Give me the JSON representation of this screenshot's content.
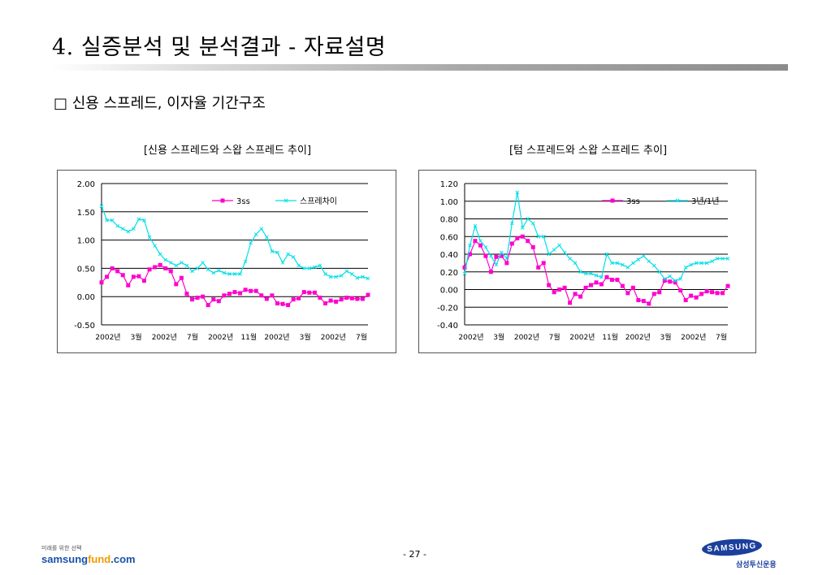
{
  "slide": {
    "title": "4. 실증분석 및 분석결과 - 자료설명",
    "subtitle": "□ 신용 스프레드, 이자율 기간구조"
  },
  "footer": {
    "tagline": "미래를 위한 선택",
    "site_main": "samsung",
    "site_accent": "fund",
    "site_suffix": ".com",
    "page_number": "- 27 -",
    "logo_text": "SAMSUNG",
    "company": "삼성투신운용"
  },
  "colors": {
    "series_a": "#ff00cc",
    "series_b": "#00e0e8"
  },
  "chart_data": [
    {
      "type": "line",
      "title": "[신용 스프레드와 스왑 스프레드 추이]",
      "legend_position": "top",
      "grid": true,
      "ylim": [
        -0.5,
        2.0
      ],
      "y_ticks": [
        "2.00",
        "1.50",
        "1.00",
        "0.50",
        "0.00",
        "-0.50"
      ],
      "y_tick_values": [
        2.0,
        1.5,
        1.0,
        0.5,
        0.0,
        -0.5
      ],
      "x_tick_labels": [
        "2002년",
        "3월",
        "2002년",
        "7월",
        "2002년",
        "11월",
        "2002년",
        "3월",
        "2002년",
        "7월"
      ],
      "series": [
        {
          "name": "3ss",
          "marker": "square",
          "values": [
            0.25,
            0.35,
            0.5,
            0.45,
            0.38,
            0.2,
            0.35,
            0.36,
            0.28,
            0.48,
            0.52,
            0.56,
            0.5,
            0.45,
            0.22,
            0.33,
            0.05,
            -0.05,
            -0.02,
            0.0,
            -0.15,
            -0.05,
            -0.08,
            0.02,
            0.05,
            0.08,
            0.06,
            0.12,
            0.1,
            0.1,
            0.02,
            -0.04,
            0.02,
            -0.12,
            -0.13,
            -0.15,
            -0.05,
            -0.03,
            0.08,
            0.07,
            0.07,
            -0.02,
            -0.12,
            -0.07,
            -0.09,
            -0.05,
            -0.02,
            -0.03,
            -0.04,
            -0.04,
            0.03
          ]
        },
        {
          "name": "스프레차이",
          "marker": "x",
          "values": [
            1.6,
            1.35,
            1.35,
            1.25,
            1.2,
            1.15,
            1.2,
            1.37,
            1.35,
            1.05,
            0.9,
            0.75,
            0.65,
            0.6,
            0.55,
            0.6,
            0.55,
            0.45,
            0.5,
            0.6,
            0.48,
            0.42,
            0.46,
            0.42,
            0.4,
            0.4,
            0.4,
            0.62,
            0.95,
            1.1,
            1.2,
            1.05,
            0.8,
            0.78,
            0.6,
            0.75,
            0.7,
            0.55,
            0.5,
            0.5,
            0.52,
            0.55,
            0.4,
            0.35,
            0.35,
            0.37,
            0.45,
            0.4,
            0.33,
            0.35,
            0.32
          ]
        }
      ]
    },
    {
      "type": "line",
      "title": "[텀 스프레드와 스왑 스프레드 추이]",
      "legend_position": "top",
      "grid": true,
      "ylim": [
        -0.4,
        1.2
      ],
      "y_ticks": [
        "1.20",
        "1.00",
        "0.80",
        "0.60",
        "0.40",
        "0.20",
        "0.00",
        "-0.20",
        "-0.40"
      ],
      "y_tick_values": [
        1.2,
        1.0,
        0.8,
        0.6,
        0.4,
        0.2,
        0.0,
        -0.2,
        -0.4
      ],
      "x_tick_labels": [
        "2002년",
        "3월",
        "2002년",
        "7월",
        "2002년",
        "11월",
        "2002년",
        "3월",
        "2002년",
        "7월"
      ],
      "series": [
        {
          "name": "3ss",
          "marker": "square",
          "values": [
            0.25,
            0.4,
            0.55,
            0.5,
            0.38,
            0.2,
            0.37,
            0.38,
            0.3,
            0.52,
            0.58,
            0.6,
            0.55,
            0.48,
            0.25,
            0.3,
            0.05,
            -0.03,
            0.0,
            0.02,
            -0.15,
            -0.05,
            -0.08,
            0.02,
            0.05,
            0.08,
            0.06,
            0.14,
            0.11,
            0.11,
            0.04,
            -0.04,
            0.02,
            -0.12,
            -0.13,
            -0.16,
            -0.05,
            -0.03,
            0.1,
            0.09,
            0.08,
            -0.01,
            -0.12,
            -0.07,
            -0.09,
            -0.05,
            -0.02,
            -0.03,
            -0.04,
            -0.04,
            0.04
          ]
        },
        {
          "name": "3년/1년",
          "marker": "x",
          "values": [
            0.18,
            0.5,
            0.72,
            0.55,
            0.48,
            0.38,
            0.28,
            0.42,
            0.35,
            0.75,
            1.1,
            0.7,
            0.8,
            0.75,
            0.6,
            0.6,
            0.4,
            0.45,
            0.5,
            0.42,
            0.35,
            0.3,
            0.2,
            0.18,
            0.18,
            0.16,
            0.14,
            0.4,
            0.3,
            0.3,
            0.28,
            0.25,
            0.3,
            0.34,
            0.38,
            0.32,
            0.27,
            0.2,
            0.12,
            0.15,
            0.1,
            0.12,
            0.25,
            0.28,
            0.3,
            0.3,
            0.3,
            0.32,
            0.35,
            0.35,
            0.35
          ]
        }
      ]
    }
  ]
}
